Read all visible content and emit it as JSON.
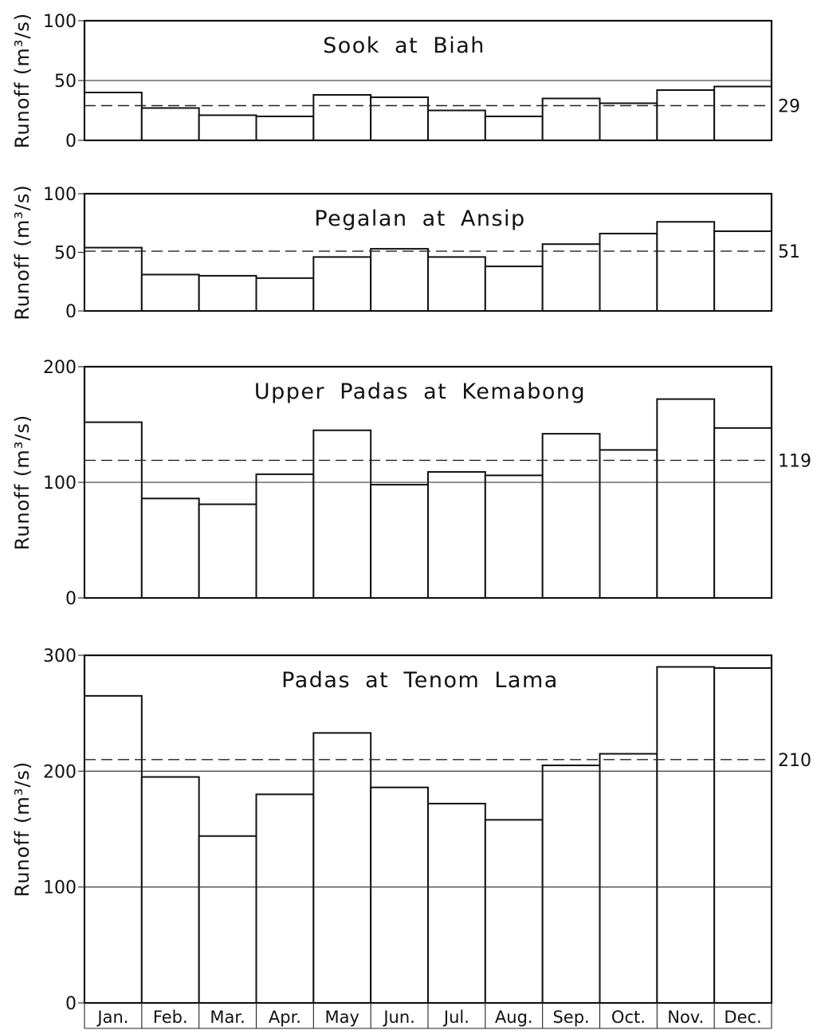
{
  "chart_data": [
    {
      "type": "bar",
      "title": "Sook at Biah",
      "ylabel": "Runoff (m³/s)",
      "ylim": [
        0,
        100
      ],
      "yticks": [
        "0",
        "50",
        "100"
      ],
      "categories": [
        "Jan.",
        "Feb.",
        "Mar.",
        "Apr.",
        "May",
        "Jun.",
        "Jul.",
        "Aug.",
        "Sep.",
        "Oct.",
        "Nov.",
        "Dec."
      ],
      "values": [
        40,
        27,
        21,
        20,
        38,
        36,
        25,
        20,
        35,
        31,
        42,
        45
      ],
      "gridlines": [
        50
      ],
      "mean": 29,
      "mean_label": "29"
    },
    {
      "type": "bar",
      "title": "Pegalan at Ansip",
      "ylabel": "Runoff (m³/s)",
      "ylim": [
        0,
        100
      ],
      "yticks": [
        "0",
        "50",
        "100"
      ],
      "categories": [
        "Jan.",
        "Feb.",
        "Mar.",
        "Apr.",
        "May",
        "Jun.",
        "Jul.",
        "Aug.",
        "Sep.",
        "Oct.",
        "Nov.",
        "Dec."
      ],
      "values": [
        54,
        31,
        30,
        28,
        46,
        53,
        46,
        38,
        57,
        66,
        76,
        68
      ],
      "gridlines": [],
      "mean": 51,
      "mean_label": "51"
    },
    {
      "type": "bar",
      "title": "Upper Padas at Kemabong",
      "ylabel": "Runoff (m³/s)",
      "ylim": [
        0,
        200
      ],
      "yticks": [
        "0",
        "100",
        "200"
      ],
      "categories": [
        "Jan.",
        "Feb.",
        "Mar.",
        "Apr.",
        "May",
        "Jun.",
        "Jul.",
        "Aug.",
        "Sep.",
        "Oct.",
        "Nov.",
        "Dec."
      ],
      "values": [
        152,
        86,
        81,
        107,
        145,
        98,
        109,
        106,
        142,
        128,
        172,
        147
      ],
      "gridlines": [
        100
      ],
      "mean": 119,
      "mean_label": "119"
    },
    {
      "type": "bar",
      "title": "Padas at Tenom Lama",
      "ylabel": "Runoff (m³/s)",
      "ylim": [
        0,
        300
      ],
      "yticks": [
        "0",
        "100",
        "200",
        "300"
      ],
      "categories": [
        "Jan.",
        "Feb.",
        "Mar.",
        "Apr.",
        "May",
        "Jun.",
        "Jul.",
        "Aug.",
        "Sep.",
        "Oct.",
        "Nov.",
        "Dec."
      ],
      "values": [
        265,
        195,
        144,
        180,
        233,
        186,
        172,
        158,
        205,
        215,
        290,
        289
      ],
      "gridlines": [
        100,
        200
      ],
      "mean": 210,
      "mean_label": "210",
      "show_month_labels": true
    }
  ]
}
